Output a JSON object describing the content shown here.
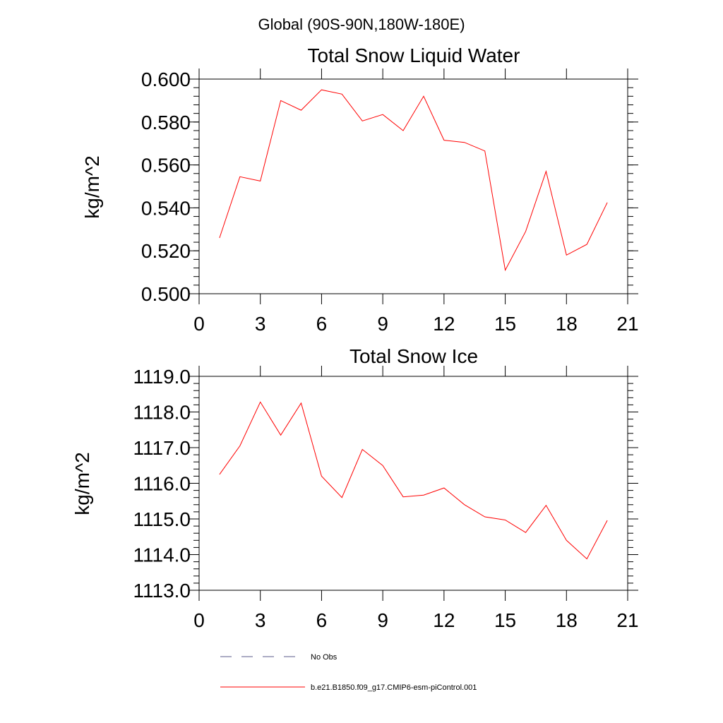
{
  "figure": {
    "supertitle": "Global (90S-90N,180W-180E)"
  },
  "chart_data": [
    {
      "type": "line",
      "title": "Total Snow Liquid Water",
      "xlabel": "",
      "ylabel": "kg/m^2",
      "xlim": [
        0,
        21
      ],
      "ylim": [
        0.5,
        0.6
      ],
      "x_ticks": [
        0,
        3,
        6,
        9,
        12,
        15,
        18,
        21
      ],
      "x_tick_labels": [
        "0",
        "3",
        "6",
        "9",
        "12",
        "15",
        "18",
        "21"
      ],
      "y_ticks": [
        0.5,
        0.52,
        0.54,
        0.56,
        0.58,
        0.6
      ],
      "y_tick_labels": [
        "0.500",
        "0.520",
        "0.540",
        "0.560",
        "0.580",
        "0.600"
      ],
      "y_minor_step": 0.004,
      "grid": false,
      "series": [
        {
          "name": "b.e21.B1850.f09_g17.CMIP6-esm-piControl.001",
          "color": "#ff0000",
          "x": [
            1,
            2,
            3,
            4,
            5,
            6,
            7,
            8,
            9,
            10,
            11,
            12,
            13,
            14,
            15,
            16,
            17,
            18,
            19,
            20
          ],
          "y": [
            0.526,
            0.5545,
            0.5525,
            0.59,
            0.5855,
            0.595,
            0.593,
            0.5805,
            0.5835,
            0.576,
            0.592,
            0.5715,
            0.5705,
            0.5665,
            0.511,
            0.529,
            0.557,
            0.518,
            0.523,
            0.5425
          ]
        }
      ]
    },
    {
      "type": "line",
      "title": "Total Snow Ice",
      "xlabel": "",
      "ylabel": "kg/m^2",
      "xlim": [
        0,
        21
      ],
      "ylim": [
        1113.0,
        1119.0
      ],
      "x_ticks": [
        0,
        3,
        6,
        9,
        12,
        15,
        18,
        21
      ],
      "x_tick_labels": [
        "0",
        "3",
        "6",
        "9",
        "12",
        "15",
        "18",
        "21"
      ],
      "y_ticks": [
        1113,
        1114,
        1115,
        1116,
        1117,
        1118,
        1119
      ],
      "y_tick_labels": [
        "1113.0",
        "1114.0",
        "1115.0",
        "1116.0",
        "1117.0",
        "1118.0",
        "1119.0"
      ],
      "y_minor_step": 0.2,
      "grid": false,
      "series": [
        {
          "name": "b.e21.B1850.f09_g17.CMIP6-esm-piControl.001",
          "color": "#ff0000",
          "x": [
            1,
            2,
            3,
            4,
            5,
            6,
            7,
            8,
            9,
            10,
            11,
            12,
            13,
            14,
            15,
            16,
            17,
            18,
            19,
            20
          ],
          "y": [
            1116.25,
            1117.05,
            1118.28,
            1117.35,
            1118.25,
            1116.2,
            1115.6,
            1116.95,
            1116.5,
            1115.62,
            1115.67,
            1115.87,
            1115.4,
            1115.06,
            1114.97,
            1114.62,
            1115.38,
            1114.4,
            1113.88,
            1114.96
          ]
        }
      ]
    }
  ],
  "legend": {
    "placement": "bottom",
    "entries": [
      {
        "label": "No Obs",
        "color": "#5a5a8a",
        "dash": "dashed"
      },
      {
        "label": "b.e21.B1850.f09_g17.CMIP6-esm-piControl.001",
        "color": "#ff0000",
        "dash": "solid"
      }
    ]
  }
}
